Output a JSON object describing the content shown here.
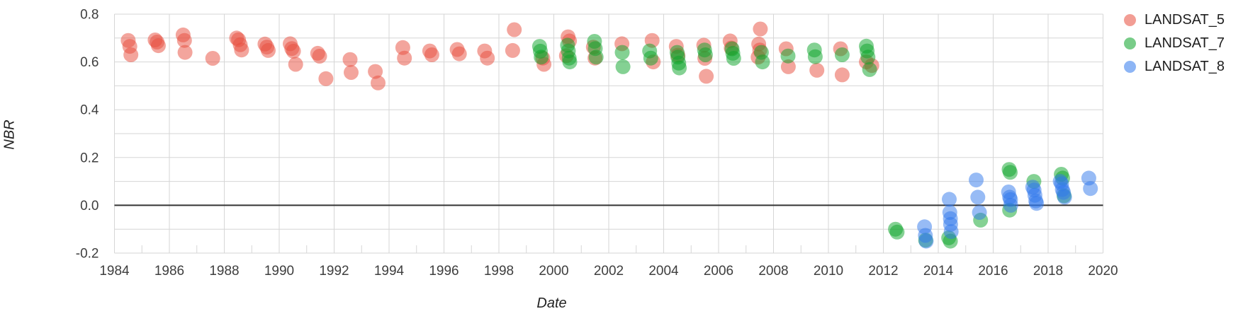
{
  "chart_data": {
    "type": "scatter",
    "title": "",
    "xlabel": "Date",
    "ylabel": "NBR",
    "xlim": [
      1984,
      2020
    ],
    "ylim": [
      -0.2,
      0.8
    ],
    "x_ticks": {
      "values": [
        1984,
        1986,
        1988,
        1990,
        1992,
        1994,
        1996,
        1998,
        2000,
        2002,
        2004,
        2006,
        2008,
        2010,
        2012,
        2014,
        2016,
        2018,
        2020
      ],
      "labels": [
        "1984",
        "1986",
        "1988",
        "1990",
        "1992",
        "1994",
        "1996",
        "1998",
        "2000",
        "2002",
        "2004",
        "2006",
        "2008",
        "2010",
        "2012",
        "2014",
        "2016",
        "2018",
        "2020"
      ],
      "minor_values": [
        1985,
        1987,
        1989,
        1991,
        1993,
        1995,
        1997,
        1999,
        2001,
        2003,
        2005,
        2007,
        2009,
        2011,
        2013,
        2015,
        2017,
        2019
      ]
    },
    "y_ticks": {
      "values": [
        0.8,
        0.6,
        0.4,
        0.2,
        0.0,
        -0.2
      ],
      "labels": [
        "0.8",
        "0.6",
        "0.4",
        "0.2",
        "0.0",
        "-0.2"
      ],
      "grid_values": [
        0.8,
        0.7,
        0.6,
        0.5,
        0.4,
        0.3,
        0.2,
        0.1,
        0.0,
        -0.1,
        -0.2
      ]
    },
    "grid": "on",
    "grid_color": "#d6d6d6",
    "zero_line_value": 0.0,
    "zero_line_color": "#333333",
    "tick_label_color": "#3e3e3e",
    "legend_position": "right",
    "marker": {
      "radius": 10.5,
      "opacity": 0.5
    },
    "series": [
      {
        "name": "LANDSAT_5",
        "color": "#e74c3c",
        "points": [
          [
            1984.5,
            0.69
          ],
          [
            1984.56,
            0.665
          ],
          [
            1984.6,
            0.63
          ],
          [
            1985.48,
            0.692
          ],
          [
            1985.55,
            0.683
          ],
          [
            1985.6,
            0.668
          ],
          [
            1986.5,
            0.713
          ],
          [
            1986.55,
            0.69
          ],
          [
            1986.57,
            0.64
          ],
          [
            1987.58,
            0.615
          ],
          [
            1988.45,
            0.7
          ],
          [
            1988.52,
            0.693
          ],
          [
            1988.58,
            0.672
          ],
          [
            1988.63,
            0.65
          ],
          [
            1989.48,
            0.675
          ],
          [
            1989.55,
            0.662
          ],
          [
            1989.6,
            0.648
          ],
          [
            1990.4,
            0.676
          ],
          [
            1990.46,
            0.656
          ],
          [
            1990.52,
            0.645
          ],
          [
            1990.6,
            0.59
          ],
          [
            1991.4,
            0.636
          ],
          [
            1991.47,
            0.624
          ],
          [
            1991.7,
            0.53
          ],
          [
            1992.58,
            0.61
          ],
          [
            1992.62,
            0.556
          ],
          [
            1993.5,
            0.56
          ],
          [
            1993.6,
            0.512
          ],
          [
            1994.5,
            0.66
          ],
          [
            1994.56,
            0.616
          ],
          [
            1995.48,
            0.646
          ],
          [
            1995.56,
            0.63
          ],
          [
            1996.48,
            0.652
          ],
          [
            1996.56,
            0.634
          ],
          [
            1997.48,
            0.646
          ],
          [
            1997.58,
            0.616
          ],
          [
            1998.56,
            0.735
          ],
          [
            1998.5,
            0.648
          ],
          [
            1999.6,
            0.616
          ],
          [
            1999.64,
            0.59
          ],
          [
            2000.52,
            0.705
          ],
          [
            2000.57,
            0.688
          ],
          [
            2000.46,
            0.626
          ],
          [
            2001.44,
            0.662
          ],
          [
            2001.5,
            0.616
          ],
          [
            2002.48,
            0.676
          ],
          [
            2003.58,
            0.69
          ],
          [
            2003.62,
            0.6
          ],
          [
            2004.46,
            0.665
          ],
          [
            2004.52,
            0.628
          ],
          [
            2005.46,
            0.67
          ],
          [
            2005.5,
            0.615
          ],
          [
            2005.55,
            0.54
          ],
          [
            2006.42,
            0.688
          ],
          [
            2006.46,
            0.658
          ],
          [
            2007.52,
            0.738
          ],
          [
            2007.46,
            0.675
          ],
          [
            2007.5,
            0.65
          ],
          [
            2007.44,
            0.62
          ],
          [
            2008.46,
            0.655
          ],
          [
            2008.54,
            0.58
          ],
          [
            2009.58,
            0.565
          ],
          [
            2010.44,
            0.655
          ],
          [
            2010.5,
            0.546
          ],
          [
            2011.38,
            0.6
          ],
          [
            2011.58,
            0.585
          ]
        ]
      },
      {
        "name": "LANDSAT_7",
        "color": "#0aa327",
        "points": [
          [
            1999.48,
            0.665
          ],
          [
            1999.51,
            0.645
          ],
          [
            1999.54,
            0.62
          ],
          [
            2000.5,
            0.67
          ],
          [
            2000.53,
            0.646
          ],
          [
            2000.56,
            0.616
          ],
          [
            2000.58,
            0.6
          ],
          [
            2001.48,
            0.686
          ],
          [
            2001.51,
            0.656
          ],
          [
            2001.54,
            0.62
          ],
          [
            2002.49,
            0.64
          ],
          [
            2002.52,
            0.58
          ],
          [
            2003.49,
            0.646
          ],
          [
            2003.53,
            0.616
          ],
          [
            2004.49,
            0.64
          ],
          [
            2004.52,
            0.62
          ],
          [
            2004.55,
            0.595
          ],
          [
            2004.57,
            0.575
          ],
          [
            2005.49,
            0.65
          ],
          [
            2005.52,
            0.63
          ],
          [
            2006.49,
            0.655
          ],
          [
            2006.52,
            0.636
          ],
          [
            2006.55,
            0.615
          ],
          [
            2007.56,
            0.64
          ],
          [
            2007.6,
            0.6
          ],
          [
            2008.53,
            0.625
          ],
          [
            2009.49,
            0.65
          ],
          [
            2009.52,
            0.622
          ],
          [
            2010.5,
            0.63
          ],
          [
            2011.38,
            0.666
          ],
          [
            2011.41,
            0.646
          ],
          [
            2011.44,
            0.62
          ],
          [
            2011.5,
            0.568
          ],
          [
            2012.44,
            -0.1
          ],
          [
            2012.5,
            -0.112
          ],
          [
            2013.54,
            -0.146
          ],
          [
            2014.38,
            -0.136
          ],
          [
            2014.44,
            -0.15
          ],
          [
            2015.54,
            -0.062
          ],
          [
            2016.58,
            0.15
          ],
          [
            2016.62,
            0.138
          ],
          [
            2016.6,
            -0.02
          ],
          [
            2017.48,
            0.1
          ],
          [
            2018.48,
            0.13
          ],
          [
            2018.53,
            0.114
          ],
          [
            2018.58,
            0.04
          ]
        ]
      },
      {
        "name": "LANDSAT_8",
        "color": "#3078ec",
        "points": [
          [
            2013.5,
            -0.09
          ],
          [
            2013.53,
            -0.126
          ],
          [
            2013.56,
            -0.15
          ],
          [
            2014.4,
            0.025
          ],
          [
            2014.42,
            -0.03
          ],
          [
            2014.44,
            -0.056
          ],
          [
            2014.45,
            -0.08
          ],
          [
            2014.47,
            -0.11
          ],
          [
            2015.38,
            0.106
          ],
          [
            2015.44,
            0.034
          ],
          [
            2015.5,
            -0.03
          ],
          [
            2016.56,
            0.056
          ],
          [
            2016.6,
            0.034
          ],
          [
            2016.63,
            0.024
          ],
          [
            2016.64,
            0.0
          ],
          [
            2017.44,
            0.076
          ],
          [
            2017.49,
            0.064
          ],
          [
            2017.52,
            0.042
          ],
          [
            2017.55,
            0.018
          ],
          [
            2017.58,
            0.008
          ],
          [
            2018.44,
            0.1
          ],
          [
            2018.49,
            0.09
          ],
          [
            2018.52,
            0.066
          ],
          [
            2018.56,
            0.054
          ],
          [
            2018.6,
            0.034
          ],
          [
            2019.48,
            0.114
          ],
          [
            2019.54,
            0.07
          ]
        ]
      }
    ]
  },
  "legend": {
    "items": [
      {
        "label": "LANDSAT_5"
      },
      {
        "label": "LANDSAT_7"
      },
      {
        "label": "LANDSAT_8"
      }
    ]
  }
}
